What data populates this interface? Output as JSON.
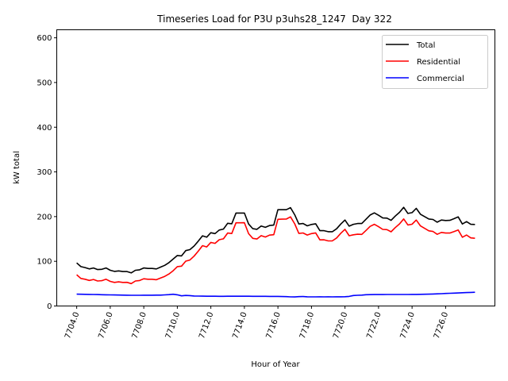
{
  "chart_data": {
    "type": "line",
    "title": "Timeseries Load for P3U p3uhs28_1247  Day 322",
    "xlabel": "Hour of Year",
    "ylabel": "kW total",
    "xlim": [
      7702.81,
      7728.94
    ],
    "ylim": [
      0,
      618
    ],
    "x_start": 7704.0,
    "x_step": 0.25,
    "xticks": [
      7704,
      7706,
      7708,
      7710,
      7712,
      7714,
      7716,
      7718,
      7720,
      7722,
      7724,
      7726
    ],
    "xtick_labels": [
      "7704.0",
      "7706.0",
      "7708.0",
      "7710.0",
      "7712.0",
      "7714.0",
      "7716.0",
      "7718.0",
      "7720.0",
      "7722.0",
      "7724.0",
      "7726.0"
    ],
    "yticks": [
      0,
      100,
      200,
      300,
      400,
      500,
      600
    ],
    "ytick_labels": [
      "0",
      "100",
      "200",
      "300",
      "400",
      "500",
      "600"
    ],
    "grid": false,
    "legend_position": "top-right",
    "series": [
      {
        "name": "Total",
        "color": "#000000",
        "values": [
          96.4,
          88,
          86,
          83,
          85,
          81.5,
          82,
          85,
          80,
          77.5,
          78.5,
          77,
          77,
          74,
          80,
          81,
          85,
          84,
          84,
          83,
          87,
          91,
          97,
          105,
          113,
          112,
          124,
          126,
          134,
          145,
          157,
          154,
          164,
          162,
          170,
          172,
          185,
          184,
          208,
          208,
          208,
          183.5,
          173,
          171.5,
          179,
          176,
          180,
          181,
          215.4,
          215.4,
          215.4,
          220,
          204,
          183.4,
          184.6,
          179.3,
          182.3,
          184,
          168.6,
          168.6,
          166.3,
          166.3,
          172.8,
          183.4,
          192.3,
          178.7,
          182.8,
          184.6,
          184.6,
          194,
          203.6,
          208.3,
          203,
          197,
          196.5,
          191.7,
          201.2,
          209.5,
          220.7,
          207.1,
          208.9,
          218.4,
          205.3,
          200,
          194.7,
          193.5,
          187.6,
          192.3,
          191.2,
          191.7,
          195.3,
          199.4,
          183.4,
          188.7,
          182.8,
          182.3
        ]
      },
      {
        "name": "Residential",
        "color": "#ff0000",
        "values": [
          69.9,
          61.7,
          59.9,
          57.1,
          59.3,
          56,
          56.7,
          59.9,
          55.1,
          52.8,
          54,
          52.7,
          52.9,
          50,
          56,
          57,
          60.9,
          59.8,
          59.8,
          58.7,
          62.6,
          66.2,
          71.6,
          78.8,
          88,
          89.2,
          100.4,
          102.8,
          111.6,
          122.8,
          135,
          132.1,
          142.2,
          140.2,
          148.3,
          150.3,
          163.2,
          162.2,
          186.1,
          186.1,
          186.2,
          161.7,
          151.3,
          149.8,
          157.4,
          154.4,
          158.5,
          159.5,
          194,
          194.2,
          194.4,
          199.5,
          183.8,
          162.4,
          163.4,
          158.7,
          161.9,
          163.5,
          148,
          148.1,
          145.7,
          145.8,
          152.2,
          162.8,
          171.5,
          157.2,
          159.3,
          160.6,
          160.2,
          168.8,
          178.2,
          182.8,
          177.4,
          171.4,
          170.8,
          166,
          175.4,
          183.7,
          194.9,
          181.3,
          183,
          192.4,
          179.2,
          173.7,
          168.2,
          166.7,
          160.4,
          164.7,
          163.2,
          163.2,
          166.5,
          170.2,
          153.8,
          158.7,
          152.4,
          151.5
        ]
      },
      {
        "name": "Commercial",
        "color": "#0000ff",
        "values": [
          26.5,
          26.3,
          26.1,
          25.9,
          25.7,
          25.5,
          25.3,
          25.1,
          24.9,
          24.7,
          24.5,
          24.3,
          24.1,
          24,
          24,
          24,
          24.1,
          24.2,
          24.2,
          24.3,
          24.4,
          24.8,
          25.4,
          26.2,
          25,
          22.8,
          23.6,
          23.2,
          22.4,
          22.2,
          22,
          21.9,
          21.8,
          21.8,
          21.7,
          21.7,
          21.8,
          21.8,
          21.9,
          21.9,
          21.8,
          21.8,
          21.7,
          21.7,
          21.6,
          21.6,
          21.5,
          21.5,
          21.4,
          21.2,
          21,
          20.5,
          20.2,
          21,
          21.2,
          20.6,
          20.4,
          20.5,
          20.6,
          20.5,
          20.6,
          20.5,
          20.6,
          20.6,
          20.8,
          21.5,
          23.5,
          24,
          24.4,
          25.2,
          25.4,
          25.5,
          25.6,
          25.6,
          25.7,
          25.7,
          25.8,
          25.8,
          25.8,
          25.8,
          25.9,
          26,
          26.1,
          26.3,
          26.5,
          26.8,
          27.2,
          27.6,
          28,
          28.5,
          28.8,
          29.2,
          29.6,
          30,
          30.4,
          30.8
        ]
      }
    ]
  }
}
